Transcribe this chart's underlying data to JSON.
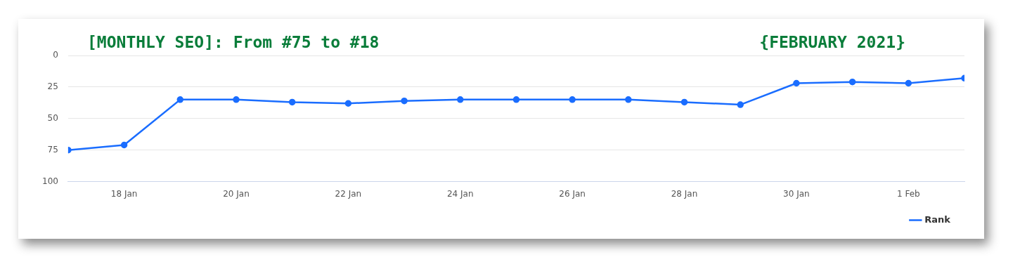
{
  "chart_data": {
    "type": "line",
    "title": "[MONTHLY SEO]: From #75 to #18",
    "subtitle": "{FEBRUARY 2021}",
    "x": [
      "--01-17",
      "--01-18",
      "--01-19",
      "--01-20",
      "--01-21",
      "--01-22",
      "--01-23",
      "--01-24",
      "--01-25",
      "--01-26",
      "--01-27",
      "--01-28",
      "--01-29",
      "--01-30",
      "--01-31",
      "--02-01",
      "--02-02"
    ],
    "series": [
      {
        "name": "Rank",
        "color": "#1a6dff",
        "values": [
          75,
          71,
          35,
          35,
          37,
          38,
          36,
          35,
          35,
          35,
          35,
          37,
          39,
          22,
          21,
          22,
          18
        ]
      }
    ],
    "xlim": [
      "--01-17",
      "--02-02"
    ],
    "xticks": [
      {
        "value": "--01-18",
        "label": "18 Jan"
      },
      {
        "value": "--01-20",
        "label": "20 Jan"
      },
      {
        "value": "--01-22",
        "label": "22 Jan"
      },
      {
        "value": "--01-24",
        "label": "24 Jan"
      },
      {
        "value": "--01-26",
        "label": "26 Jan"
      },
      {
        "value": "--01-28",
        "label": "28 Jan"
      },
      {
        "value": "--01-30",
        "label": "30 Jan"
      },
      {
        "value": "--02-01",
        "label": "1 Feb"
      }
    ],
    "ylim": [
      100,
      0
    ],
    "yticks": [
      0,
      25,
      50,
      75,
      100
    ],
    "grid": "y",
    "legend": "bottom right",
    "marker": "circle",
    "line_style": "solid"
  }
}
